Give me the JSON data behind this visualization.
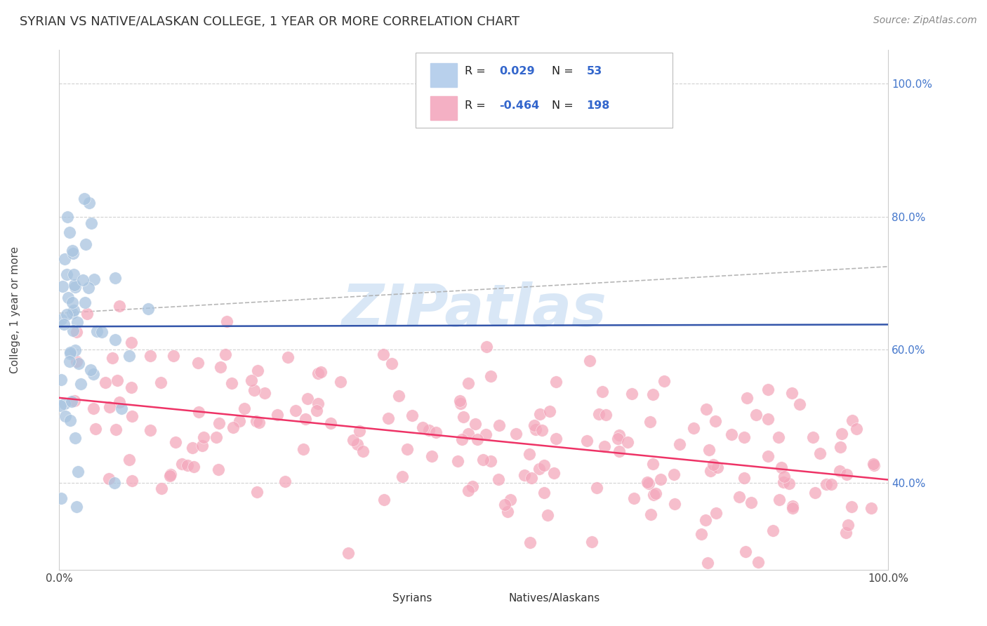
{
  "title": "SYRIAN VS NATIVE/ALASKAN COLLEGE, 1 YEAR OR MORE CORRELATION CHART",
  "source": "Source: ZipAtlas.com",
  "ylabel": "College, 1 year or more",
  "xlim": [
    0.0,
    1.0
  ],
  "ylim": [
    0.27,
    1.05
  ],
  "ytick_positions": [
    0.4,
    0.6,
    0.8,
    1.0
  ],
  "ytick_labels": [
    "40.0%",
    "60.0%",
    "80.0%",
    "100.0%"
  ],
  "xtick_positions": [
    0.0,
    1.0
  ],
  "xtick_labels": [
    "0.0%",
    "100.0%"
  ],
  "blue_R": 0.029,
  "blue_N": 53,
  "pink_R": -0.464,
  "pink_N": 198,
  "blue_dot_color": "#a8c4e0",
  "pink_dot_color": "#f4a8bc",
  "blue_line_color": "#3355aa",
  "pink_line_color": "#ee3366",
  "gray_dash_color": "#aaaaaa",
  "watermark_color": "#c0d8f0",
  "legend_label_blue": "Syrians",
  "legend_label_pink": "Natives/Alaskans",
  "bg_color": "#ffffff",
  "grid_color": "#cccccc",
  "blue_line_y0": 0.635,
  "blue_line_y1": 0.638,
  "pink_line_y0": 0.528,
  "pink_line_y1": 0.405,
  "gray_line_y0": 0.655,
  "gray_line_y1": 0.725
}
